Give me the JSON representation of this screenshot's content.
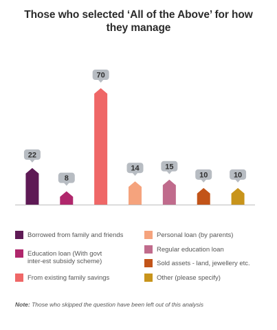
{
  "chart_data": {
    "type": "bar",
    "title": "Those who selected ‘All of the Above’ for how they manage",
    "categories": [
      "Borrowed from family and friends",
      "Education loan (With govt inter-est subsidy scheme)",
      "From existing family savings",
      "Personal loan (by parents)",
      "Regular education loan",
      "Sold assets - land, jewellery etc.",
      "Other (please specify)"
    ],
    "values": [
      22,
      8,
      70,
      14,
      15,
      10,
      10
    ],
    "colors": [
      "#5e1a55",
      "#b0276c",
      "#ef6767",
      "#f5a37d",
      "#c06b8c",
      "#c25419",
      "#c8941b"
    ],
    "label_bubble_color": "#b7bcc2",
    "ylim": [
      0,
      70
    ],
    "grid": false,
    "legend_position": "bottom"
  },
  "legend": {
    "items": [
      {
        "label": "Borrowed from family and friends",
        "color": "#5e1a55"
      },
      {
        "label": "Education loan (With govt inter-est subsidy scheme)",
        "color": "#b0276c"
      },
      {
        "label": "From existing family savings",
        "color": "#ef6767"
      },
      {
        "label": "Personal loan (by parents)",
        "color": "#f5a37d"
      },
      {
        "label": "Regular education loan",
        "color": "#c06b8c"
      },
      {
        "label": "Sold assets - land, jewellery etc.",
        "color": "#c25419"
      },
      {
        "label": "Other (please specify)",
        "color": "#c8941b"
      }
    ]
  },
  "note": {
    "prefix": "Note:",
    "text": " Those who skipped the question have been left out of this analysis"
  }
}
